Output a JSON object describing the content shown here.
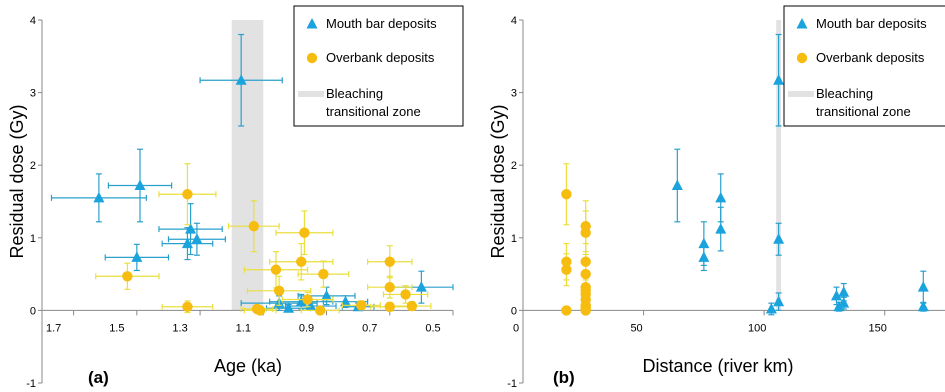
{
  "chart_data": [
    {
      "type": "scatter",
      "panel_label": "(a)",
      "xlabel": "Age (ka)",
      "ylabel": "Residual dose (Gy)",
      "xlim": [
        1.8,
        0.5
      ],
      "x_reversed": true,
      "ylim": [
        -1,
        4
      ],
      "x_ticks": [
        "1.7",
        "1.5",
        "1.3",
        "1.1",
        "0.9",
        "0.7",
        "0.5"
      ],
      "y_ticks": [
        "-1",
        "0",
        "1",
        "2",
        "3",
        "4"
      ],
      "grid": false,
      "bleaching_zone": [
        1.2,
        1.1
      ],
      "legend": {
        "placement": "top-right",
        "entries": [
          {
            "label": "Mouth bar deposits",
            "color": "#1aa3dc",
            "marker": "triangle"
          },
          {
            "label": "Overbank deposits",
            "color": "#f6bc10",
            "marker": "circle"
          },
          {
            "label": "Bleaching transitional zone",
            "label_lines": [
              "Bleaching",
              "transitional zone"
            ],
            "color": "#e2e2e2",
            "marker": "band"
          }
        ]
      },
      "series": [
        {
          "name": "Mouth bar deposits",
          "color": "#1aa3dc",
          "errcolor": "#2aa0cc",
          "marker": "triangle",
          "points": [
            {
              "x": 1.62,
              "y": 1.55,
              "xerr": 0.15,
              "yerr": 0.33
            },
            {
              "x": 1.49,
              "y": 1.72,
              "xerr": 0.1,
              "yerr": 0.5
            },
            {
              "x": 1.5,
              "y": 0.73,
              "xerr": 0.1,
              "yerr": 0.18
            },
            {
              "x": 1.34,
              "y": 0.92,
              "xerr": 0.08,
              "yerr": 0.22
            },
            {
              "x": 1.33,
              "y": 1.12,
              "xerr": 0.1,
              "yerr": 0.35
            },
            {
              "x": 1.31,
              "y": 0.98,
              "xerr": 0.09,
              "yerr": 0.22
            },
            {
              "x": 1.17,
              "y": 3.17,
              "xerr": 0.13,
              "yerr": 0.63
            },
            {
              "x": 1.05,
              "y": 0.1,
              "xerr": 0.12,
              "yerr": 0.1
            },
            {
              "x": 1.02,
              "y": 0.03,
              "xerr": 0.07,
              "yerr": 0.05
            },
            {
              "x": 0.98,
              "y": 0.12,
              "xerr": 0.1,
              "yerr": 0.1
            },
            {
              "x": 0.95,
              "y": 0.06,
              "xerr": 0.08,
              "yerr": 0.06
            },
            {
              "x": 0.9,
              "y": 0.2,
              "xerr": 0.09,
              "yerr": 0.12
            },
            {
              "x": 0.84,
              "y": 0.12,
              "xerr": 0.07,
              "yerr": 0.08
            },
            {
              "x": 0.8,
              "y": 0.05,
              "xerr": 0.05,
              "yerr": 0.05
            },
            {
              "x": 0.6,
              "y": 0.32,
              "xerr": 0.1,
              "yerr": 0.22
            }
          ]
        },
        {
          "name": "Overbank deposits",
          "color": "#f6bc10",
          "errcolor": "#eadf3c",
          "marker": "circle",
          "points": [
            {
              "x": 1.53,
              "y": 0.47,
              "xerr": 0.1,
              "yerr": 0.18
            },
            {
              "x": 1.34,
              "y": 1.6,
              "xerr": 0.09,
              "yerr": 0.42
            },
            {
              "x": 1.34,
              "y": 0.05,
              "xerr": 0.08,
              "yerr": 0.08
            },
            {
              "x": 1.13,
              "y": 1.16,
              "xerr": 0.08,
              "yerr": 0.35
            },
            {
              "x": 1.12,
              "y": 0.02,
              "xerr": 0.05,
              "yerr": 0.05
            },
            {
              "x": 1.11,
              "y": 0.0,
              "xerr": 0.05,
              "yerr": 0.05
            },
            {
              "x": 1.06,
              "y": 0.56,
              "xerr": 0.1,
              "yerr": 0.25
            },
            {
              "x": 1.05,
              "y": 0.27,
              "xerr": 0.1,
              "yerr": 0.2
            },
            {
              "x": 0.98,
              "y": 0.67,
              "xerr": 0.1,
              "yerr": 0.25
            },
            {
              "x": 0.97,
              "y": 1.07,
              "xerr": 0.09,
              "yerr": 0.3
            },
            {
              "x": 0.96,
              "y": 0.15,
              "xerr": 0.08,
              "yerr": 0.1
            },
            {
              "x": 0.91,
              "y": 0.5,
              "xerr": 0.08,
              "yerr": 0.18
            },
            {
              "x": 0.92,
              "y": 0.0,
              "xerr": 0.06,
              "yerr": 0.05
            },
            {
              "x": 0.79,
              "y": 0.07,
              "xerr": 0.06,
              "yerr": 0.06
            },
            {
              "x": 0.7,
              "y": 0.67,
              "xerr": 0.07,
              "yerr": 0.22
            },
            {
              "x": 0.7,
              "y": 0.32,
              "xerr": 0.07,
              "yerr": 0.15
            },
            {
              "x": 0.7,
              "y": 0.05,
              "xerr": 0.06,
              "yerr": 0.06
            },
            {
              "x": 0.65,
              "y": 0.22,
              "xerr": 0.07,
              "yerr": 0.12
            },
            {
              "x": 0.63,
              "y": 0.06,
              "xerr": 0.06,
              "yerr": 0.06
            }
          ]
        }
      ]
    },
    {
      "type": "scatter",
      "panel_label": "(b)",
      "xlabel": "Distance (river km)",
      "ylabel": "Residual dose (Gy)",
      "xlim": [
        0,
        175
      ],
      "x_reversed": false,
      "ylim": [
        -1,
        4
      ],
      "x_ticks": [
        "0",
        "50",
        "100",
        "150"
      ],
      "y_ticks": [
        "-1",
        "0",
        "1",
        "2",
        "3",
        "4"
      ],
      "grid": false,
      "bleaching_zone": [
        105,
        107
      ],
      "legend": {
        "placement": "top-right",
        "entries": [
          {
            "label": "Mouth bar deposits",
            "color": "#1aa3dc",
            "marker": "triangle"
          },
          {
            "label": "Overbank deposits",
            "color": "#f6bc10",
            "marker": "circle"
          },
          {
            "label": "Bleaching transitional zone",
            "label_lines": [
              "Bleaching",
              "transitional zone"
            ],
            "color": "#e2e2e2",
            "marker": "band"
          }
        ]
      },
      "series": [
        {
          "name": "Mouth bar deposits",
          "color": "#1aa3dc",
          "errcolor": "#2aa0cc",
          "marker": "triangle",
          "points": [
            {
              "x": 64,
              "y": 1.72,
              "yerr": 0.5
            },
            {
              "x": 75,
              "y": 0.92,
              "yerr": 0.3
            },
            {
              "x": 75,
              "y": 0.73,
              "yerr": 0.18
            },
            {
              "x": 82,
              "y": 1.55,
              "yerr": 0.33
            },
            {
              "x": 82,
              "y": 1.12,
              "yerr": 0.3
            },
            {
              "x": 103,
              "y": 0.02,
              "yerr": 0.08
            },
            {
              "x": 106,
              "y": 3.17,
              "yerr": 0.63
            },
            {
              "x": 106,
              "y": 0.98,
              "yerr": 0.22
            },
            {
              "x": 106,
              "y": 0.12,
              "yerr": 0.12
            },
            {
              "x": 130,
              "y": 0.2,
              "yerr": 0.12
            },
            {
              "x": 131,
              "y": 0.05,
              "yerr": 0.06
            },
            {
              "x": 133,
              "y": 0.25,
              "yerr": 0.12
            },
            {
              "x": 133,
              "y": 0.1,
              "yerr": 0.08
            },
            {
              "x": 166,
              "y": 0.32,
              "yerr": 0.22
            },
            {
              "x": 166,
              "y": 0.05,
              "yerr": 0.06
            }
          ]
        },
        {
          "name": "Overbank deposits",
          "color": "#f6bc10",
          "errcolor": "#eadf3c",
          "marker": "circle",
          "points": [
            {
              "x": 18,
              "y": 1.6,
              "yerr": 0.42
            },
            {
              "x": 18,
              "y": 0.67,
              "yerr": 0.25
            },
            {
              "x": 18,
              "y": 0.56,
              "yerr": 0.22
            },
            {
              "x": 18,
              "y": 0.0,
              "yerr": 0.05
            },
            {
              "x": 26,
              "y": 1.16,
              "yerr": 0.35
            },
            {
              "x": 26,
              "y": 1.07,
              "yerr": 0.3
            },
            {
              "x": 26,
              "y": 0.67,
              "yerr": 0.25
            },
            {
              "x": 26,
              "y": 0.5,
              "yerr": 0.18
            },
            {
              "x": 26,
              "y": 0.32,
              "yerr": 0.15
            },
            {
              "x": 26,
              "y": 0.27,
              "yerr": 0.2
            },
            {
              "x": 26,
              "y": 0.22,
              "yerr": 0.12
            },
            {
              "x": 26,
              "y": 0.15,
              "yerr": 0.1
            },
            {
              "x": 26,
              "y": 0.07,
              "yerr": 0.06
            },
            {
              "x": 26,
              "y": 0.05,
              "yerr": 0.06
            },
            {
              "x": 26,
              "y": 0.02,
              "yerr": 0.05
            },
            {
              "x": 26,
              "y": 0.0,
              "yerr": 0.05
            }
          ]
        }
      ]
    }
  ]
}
